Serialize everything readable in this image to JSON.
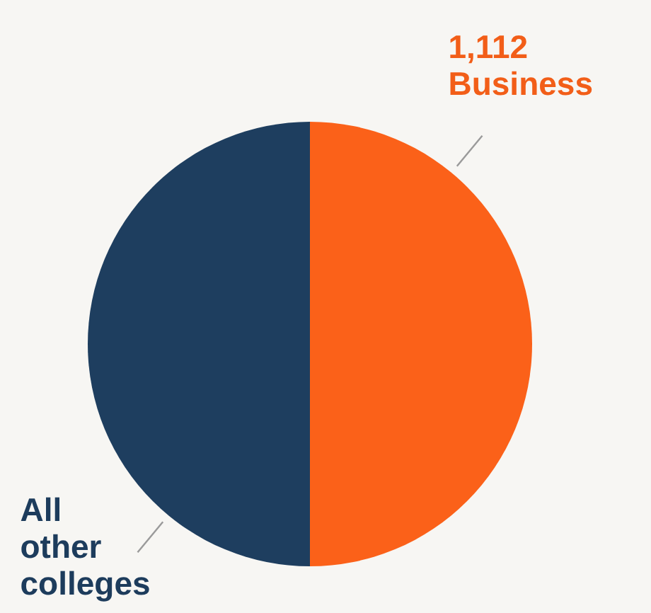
{
  "chart_data": {
    "type": "pie",
    "categories": [
      "Business",
      "All other colleges"
    ],
    "values": [
      1112,
      1112
    ],
    "colors": [
      "#fb6119",
      "#1e3e5f"
    ],
    "value_labels": [
      "1,112",
      null
    ]
  }
}
